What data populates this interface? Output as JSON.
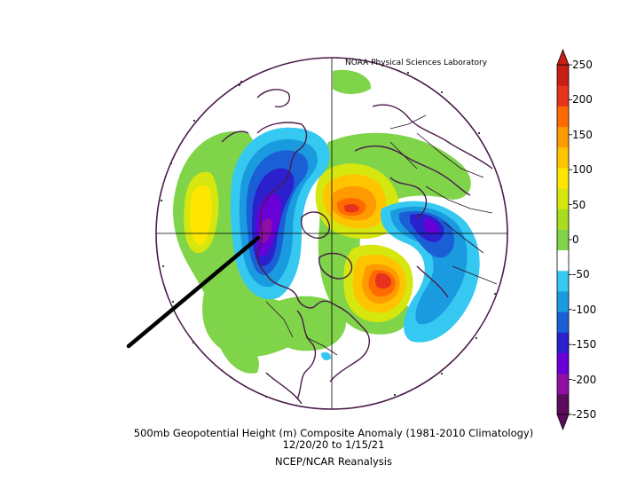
{
  "credit": "NOAA Physical Sciences Laboratory",
  "title": {
    "line1": "500mb Geopotential Height (m) Composite Anomaly (1981-2010 Climatology)",
    "line2": "12/20/20  to 1/15/21",
    "line3": "NCEP/NCAR Reanalysis"
  },
  "colorbar": {
    "ticks": [
      "250",
      "200",
      "150",
      "100",
      "50",
      "0",
      "-50",
      "-100",
      "-150",
      "-200",
      "-250"
    ],
    "range": [
      -250,
      250
    ],
    "colors": [
      "#5c0a5c",
      "#8f0fa6",
      "#6a00d8",
      "#2c1fcc",
      "#1a5fd6",
      "#1a9be0",
      "#35c8f0",
      "#ffffff",
      "#7fd44a",
      "#a8dc1e",
      "#d6e60f",
      "#ffe600",
      "#ffc400",
      "#ff9a00",
      "#ff6a00",
      "#e8321e",
      "#c81e14"
    ]
  },
  "map": {
    "projection": "north-polar-stereographic",
    "features": [
      {
        "name": "anomaly-max",
        "value": "positive (red-orange)",
        "region": "Greenland / N Atlantic"
      },
      {
        "name": "anomaly-max",
        "value": "positive (red-orange)",
        "region": "East Siberia"
      },
      {
        "name": "anomaly-min",
        "value": "negative (purple)",
        "region": "North Atlantic / W Europe"
      },
      {
        "name": "anomaly-min",
        "value": "negative (blue)",
        "region": "Northern Pacific"
      }
    ]
  }
}
